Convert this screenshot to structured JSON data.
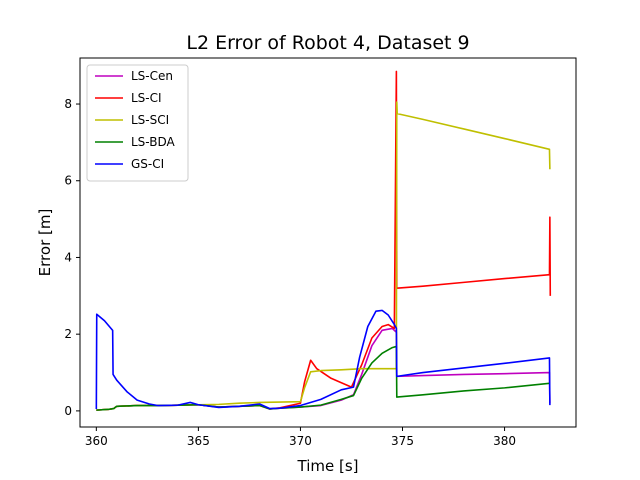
{
  "chart_data": {
    "type": "line",
    "title": "L2 Error of Robot 4, Dataset 9",
    "xlabel": "Time [s]",
    "ylabel": "Error [m]",
    "xlim": [
      359.2,
      383.5
    ],
    "ylim": [
      -0.42,
      9.2
    ],
    "xticks": [
      360,
      365,
      370,
      375,
      380
    ],
    "yticks": [
      0,
      2,
      4,
      6,
      8
    ],
    "grid": false,
    "legend_position": "top-left",
    "series": [
      {
        "name": "LS-Cen",
        "color": "#bf00bf",
        "points": [
          [
            360,
            0.02
          ],
          [
            360.6,
            0.04
          ],
          [
            360.85,
            0.06
          ],
          [
            361,
            0.12
          ],
          [
            362,
            0.14
          ],
          [
            363,
            0.14
          ],
          [
            364,
            0.15
          ],
          [
            365,
            0.16
          ],
          [
            366,
            0.1
          ],
          [
            367,
            0.12
          ],
          [
            368,
            0.14
          ],
          [
            368.5,
            0.05
          ],
          [
            369,
            0.07
          ],
          [
            370,
            0.1
          ],
          [
            371,
            0.14
          ],
          [
            372,
            0.28
          ],
          [
            372.6,
            0.42
          ],
          [
            373,
            0.95
          ],
          [
            373.5,
            1.7
          ],
          [
            374,
            2.1
          ],
          [
            374.5,
            2.15
          ],
          [
            374.7,
            2.05
          ],
          [
            374.72,
            0.9
          ],
          [
            376,
            0.92
          ],
          [
            378,
            0.95
          ],
          [
            380,
            0.97
          ],
          [
            382.2,
            1.0
          ],
          [
            382.22,
            0.2
          ]
        ]
      },
      {
        "name": "LS-CI",
        "color": "#ff0000",
        "points": [
          [
            360,
            0.02
          ],
          [
            360.6,
            0.04
          ],
          [
            360.85,
            0.06
          ],
          [
            361,
            0.12
          ],
          [
            362,
            0.14
          ],
          [
            363,
            0.14
          ],
          [
            364,
            0.15
          ],
          [
            365,
            0.16
          ],
          [
            366,
            0.1
          ],
          [
            367,
            0.12
          ],
          [
            368,
            0.14
          ],
          [
            368.5,
            0.05
          ],
          [
            369,
            0.08
          ],
          [
            370,
            0.2
          ],
          [
            370.2,
            0.75
          ],
          [
            370.5,
            1.32
          ],
          [
            370.8,
            1.1
          ],
          [
            371.5,
            0.85
          ],
          [
            372.5,
            0.62
          ],
          [
            373,
            1.2
          ],
          [
            373.5,
            1.9
          ],
          [
            374,
            2.2
          ],
          [
            374.3,
            2.25
          ],
          [
            374.6,
            2.15
          ],
          [
            374.7,
            8.85
          ],
          [
            374.72,
            3.2
          ],
          [
            376,
            3.25
          ],
          [
            378,
            3.35
          ],
          [
            380,
            3.45
          ],
          [
            382.2,
            3.55
          ],
          [
            382.22,
            5.05
          ],
          [
            382.24,
            3.0
          ]
        ]
      },
      {
        "name": "LS-SCI",
        "color": "#bfbf00",
        "points": [
          [
            360,
            0.02
          ],
          [
            360.6,
            0.04
          ],
          [
            360.85,
            0.06
          ],
          [
            361,
            0.12
          ],
          [
            362,
            0.14
          ],
          [
            363,
            0.14
          ],
          [
            364,
            0.15
          ],
          [
            365,
            0.16
          ],
          [
            366,
            0.17
          ],
          [
            367,
            0.2
          ],
          [
            368,
            0.22
          ],
          [
            369,
            0.23
          ],
          [
            370,
            0.24
          ],
          [
            370.2,
            0.6
          ],
          [
            370.5,
            1.02
          ],
          [
            371,
            1.05
          ],
          [
            372,
            1.07
          ],
          [
            373,
            1.1
          ],
          [
            374,
            1.1
          ],
          [
            374.7,
            1.1
          ],
          [
            374.72,
            8.05
          ],
          [
            374.74,
            7.75
          ],
          [
            376,
            7.6
          ],
          [
            378,
            7.35
          ],
          [
            380,
            7.1
          ],
          [
            382.2,
            6.82
          ],
          [
            382.22,
            6.3
          ]
        ]
      },
      {
        "name": "LS-BDA",
        "color": "#008000",
        "points": [
          [
            360,
            0.02
          ],
          [
            360.6,
            0.04
          ],
          [
            360.85,
            0.06
          ],
          [
            361,
            0.12
          ],
          [
            362,
            0.14
          ],
          [
            363,
            0.14
          ],
          [
            364,
            0.15
          ],
          [
            365,
            0.16
          ],
          [
            366,
            0.1
          ],
          [
            367,
            0.12
          ],
          [
            368,
            0.14
          ],
          [
            368.5,
            0.05
          ],
          [
            369,
            0.07
          ],
          [
            370,
            0.1
          ],
          [
            371,
            0.15
          ],
          [
            372,
            0.3
          ],
          [
            372.6,
            0.4
          ],
          [
            373,
            0.85
          ],
          [
            373.5,
            1.25
          ],
          [
            374,
            1.5
          ],
          [
            374.5,
            1.65
          ],
          [
            374.7,
            1.68
          ],
          [
            374.72,
            0.36
          ],
          [
            376,
            0.42
          ],
          [
            378,
            0.52
          ],
          [
            380,
            0.6
          ],
          [
            382.2,
            0.72
          ]
        ]
      },
      {
        "name": "GS-CI",
        "color": "#0000ff",
        "points": [
          [
            360,
            0.05
          ],
          [
            360.02,
            2.52
          ],
          [
            360.4,
            2.35
          ],
          [
            360.8,
            2.1
          ],
          [
            360.82,
            0.95
          ],
          [
            361,
            0.8
          ],
          [
            361.5,
            0.5
          ],
          [
            362,
            0.28
          ],
          [
            362.6,
            0.18
          ],
          [
            363,
            0.14
          ],
          [
            364,
            0.15
          ],
          [
            364.6,
            0.22
          ],
          [
            365,
            0.16
          ],
          [
            366,
            0.09
          ],
          [
            367,
            0.12
          ],
          [
            368,
            0.18
          ],
          [
            368.5,
            0.06
          ],
          [
            369,
            0.07
          ],
          [
            370,
            0.14
          ],
          [
            371,
            0.3
          ],
          [
            372,
            0.55
          ],
          [
            372.6,
            0.62
          ],
          [
            372.9,
            1.4
          ],
          [
            373.3,
            2.2
          ],
          [
            373.7,
            2.6
          ],
          [
            374,
            2.62
          ],
          [
            374.3,
            2.5
          ],
          [
            374.6,
            2.25
          ],
          [
            374.7,
            2.15
          ],
          [
            374.72,
            0.9
          ],
          [
            376,
            1.0
          ],
          [
            378,
            1.12
          ],
          [
            380,
            1.24
          ],
          [
            382.2,
            1.38
          ],
          [
            382.22,
            0.15
          ]
        ]
      }
    ]
  }
}
